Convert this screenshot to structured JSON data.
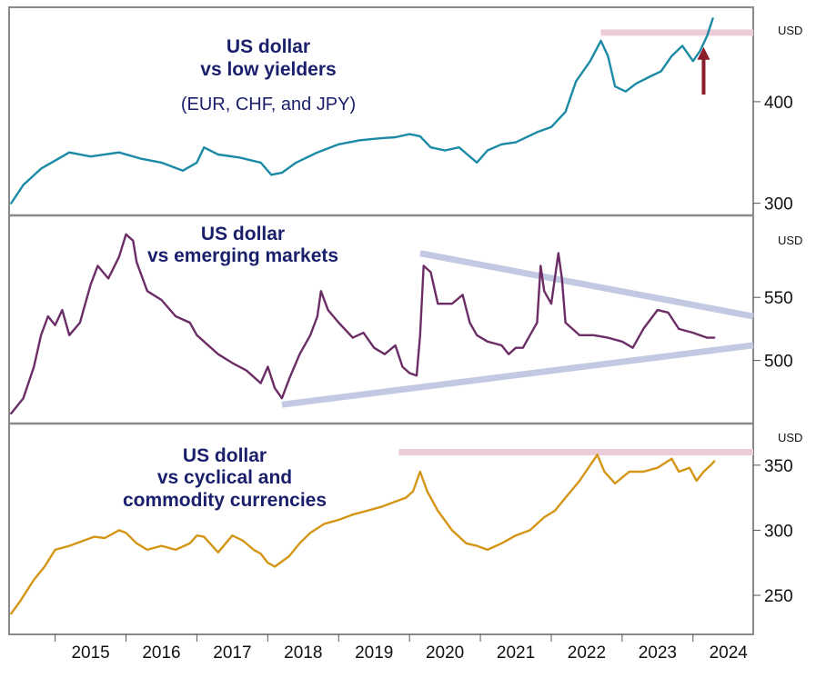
{
  "colors": {
    "low_yielders": "#1b8aa5",
    "emerging": "#6b2d65",
    "cyclical": "#d49515",
    "resistance_band": "#ecccd8",
    "triangle": "#c3c9e3",
    "arrow": "#8a1c2b",
    "title": "#1a1f6b"
  },
  "x_axis": {
    "labels": [
      "2015",
      "2016",
      "2017",
      "2018",
      "2019",
      "2020",
      "2021",
      "2022",
      "2023",
      "2024"
    ]
  },
  "chart_data": [
    {
      "type": "line",
      "title_lines": [
        "US dollar",
        "vs low yielders"
      ],
      "subtitle": "(EUR, CHF, and JPY)",
      "unit": "USD",
      "ylim": [
        288,
        493
      ],
      "y_ticks": [
        300,
        400
      ],
      "x_range": [
        2014.35,
        2024.85
      ],
      "series": [
        {
          "color_key": "low_yielders",
          "points": [
            [
              2014.38,
              300
            ],
            [
              2014.55,
              318
            ],
            [
              2014.8,
              334
            ],
            [
              2015.0,
              342
            ],
            [
              2015.2,
              350
            ],
            [
              2015.5,
              346
            ],
            [
              2015.9,
              350
            ],
            [
              2016.2,
              344
            ],
            [
              2016.5,
              340
            ],
            [
              2016.8,
              332
            ],
            [
              2017.0,
              340
            ],
            [
              2017.1,
              355
            ],
            [
              2017.3,
              348
            ],
            [
              2017.6,
              345
            ],
            [
              2017.9,
              340
            ],
            [
              2018.05,
              328
            ],
            [
              2018.2,
              330
            ],
            [
              2018.4,
              340
            ],
            [
              2018.7,
              350
            ],
            [
              2019.0,
              358
            ],
            [
              2019.3,
              362
            ],
            [
              2019.6,
              364
            ],
            [
              2019.8,
              365
            ],
            [
              2020.0,
              368
            ],
            [
              2020.15,
              366
            ],
            [
              2020.3,
              355
            ],
            [
              2020.5,
              352
            ],
            [
              2020.7,
              355
            ],
            [
              2020.85,
              346
            ],
            [
              2020.95,
              340
            ],
            [
              2021.1,
              352
            ],
            [
              2021.3,
              358
            ],
            [
              2021.5,
              360
            ],
            [
              2021.8,
              370
            ],
            [
              2022.0,
              375
            ],
            [
              2022.2,
              390
            ],
            [
              2022.35,
              420
            ],
            [
              2022.55,
              440
            ],
            [
              2022.7,
              460
            ],
            [
              2022.8,
              445
            ],
            [
              2022.9,
              415
            ],
            [
              2023.05,
              410
            ],
            [
              2023.2,
              418
            ],
            [
              2023.4,
              425
            ],
            [
              2023.55,
              430
            ],
            [
              2023.7,
              445
            ],
            [
              2023.85,
              455
            ],
            [
              2024.0,
              440
            ],
            [
              2024.1,
              450
            ],
            [
              2024.2,
              465
            ],
            [
              2024.28,
              482
            ]
          ]
        }
      ],
      "reference_lines": [
        {
          "kind": "horizontal",
          "y": 468,
          "x_start": 2022.7,
          "x_end": 2024.85,
          "color_key": "resistance_band"
        }
      ],
      "annotations": [
        {
          "kind": "up-arrow",
          "x": 2024.15,
          "y_from": 407,
          "y_to": 452,
          "color_key": "arrow"
        }
      ]
    },
    {
      "type": "line",
      "title_lines": [
        "US dollar",
        "vs emerging markets"
      ],
      "unit": "USD",
      "ylim": [
        450,
        615
      ],
      "y_ticks": [
        500,
        550
      ],
      "x_range": [
        2014.35,
        2024.85
      ],
      "series": [
        {
          "color_key": "emerging",
          "points": [
            [
              2014.38,
              458
            ],
            [
              2014.55,
              470
            ],
            [
              2014.7,
              495
            ],
            [
              2014.8,
              520
            ],
            [
              2014.9,
              535
            ],
            [
              2015.0,
              528
            ],
            [
              2015.1,
              540
            ],
            [
              2015.2,
              520
            ],
            [
              2015.35,
              530
            ],
            [
              2015.5,
              560
            ],
            [
              2015.6,
              575
            ],
            [
              2015.75,
              565
            ],
            [
              2015.9,
              582
            ],
            [
              2016.0,
              600
            ],
            [
              2016.1,
              595
            ],
            [
              2016.15,
              578
            ],
            [
              2016.3,
              555
            ],
            [
              2016.5,
              548
            ],
            [
              2016.7,
              535
            ],
            [
              2016.9,
              530
            ],
            [
              2017.0,
              520
            ],
            [
              2017.3,
              505
            ],
            [
              2017.5,
              498
            ],
            [
              2017.7,
              492
            ],
            [
              2017.9,
              482
            ],
            [
              2018.0,
              495
            ],
            [
              2018.1,
              478
            ],
            [
              2018.2,
              470
            ],
            [
              2018.3,
              485
            ],
            [
              2018.45,
              505
            ],
            [
              2018.6,
              520
            ],
            [
              2018.7,
              535
            ],
            [
              2018.75,
              555
            ],
            [
              2018.85,
              540
            ],
            [
              2019.0,
              530
            ],
            [
              2019.2,
              518
            ],
            [
              2019.35,
              522
            ],
            [
              2019.5,
              510
            ],
            [
              2019.65,
              505
            ],
            [
              2019.8,
              512
            ],
            [
              2019.9,
              495
            ],
            [
              2020.0,
              490
            ],
            [
              2020.1,
              488
            ],
            [
              2020.15,
              520
            ],
            [
              2020.2,
              575
            ],
            [
              2020.3,
              570
            ],
            [
              2020.4,
              545
            ],
            [
              2020.6,
              545
            ],
            [
              2020.75,
              552
            ],
            [
              2020.85,
              530
            ],
            [
              2020.95,
              520
            ],
            [
              2021.1,
              515
            ],
            [
              2021.3,
              512
            ],
            [
              2021.4,
              505
            ],
            [
              2021.5,
              510
            ],
            [
              2021.6,
              510
            ],
            [
              2021.7,
              520
            ],
            [
              2021.8,
              530
            ],
            [
              2021.85,
              575
            ],
            [
              2021.9,
              555
            ],
            [
              2022.0,
              545
            ],
            [
              2022.1,
              585
            ],
            [
              2022.15,
              565
            ],
            [
              2022.2,
              530
            ],
            [
              2022.4,
              520
            ],
            [
              2022.6,
              520
            ],
            [
              2022.8,
              518
            ],
            [
              2023.0,
              515
            ],
            [
              2023.15,
              510
            ],
            [
              2023.3,
              525
            ],
            [
              2023.5,
              540
            ],
            [
              2023.65,
              538
            ],
            [
              2023.8,
              525
            ],
            [
              2024.0,
              522
            ],
            [
              2024.2,
              518
            ],
            [
              2024.3,
              518
            ]
          ]
        }
      ],
      "reference_lines": [
        {
          "kind": "segment",
          "x1": 2020.15,
          "y1": 585,
          "x2": 2024.85,
          "y2": 535,
          "color_key": "triangle"
        },
        {
          "kind": "segment",
          "x1": 2018.2,
          "y1": 465,
          "x2": 2024.85,
          "y2": 512,
          "color_key": "triangle"
        }
      ]
    },
    {
      "type": "line",
      "title_lines": [
        "US dollar",
        "vs cyclical and",
        "commodity currencies"
      ],
      "unit": "USD",
      "ylim": [
        220,
        382
      ],
      "y_ticks": [
        250,
        300,
        350
      ],
      "x_range": [
        2014.35,
        2024.85
      ],
      "series": [
        {
          "color_key": "cyclical",
          "points": [
            [
              2014.38,
              236
            ],
            [
              2014.5,
              245
            ],
            [
              2014.7,
              262
            ],
            [
              2014.85,
              272
            ],
            [
              2015.0,
              285
            ],
            [
              2015.2,
              288
            ],
            [
              2015.4,
              292
            ],
            [
              2015.55,
              295
            ],
            [
              2015.7,
              294
            ],
            [
              2015.9,
              300
            ],
            [
              2016.0,
              298
            ],
            [
              2016.15,
              290
            ],
            [
              2016.3,
              285
            ],
            [
              2016.5,
              288
            ],
            [
              2016.7,
              285
            ],
            [
              2016.9,
              290
            ],
            [
              2017.0,
              296
            ],
            [
              2017.1,
              295
            ],
            [
              2017.3,
              283
            ],
            [
              2017.5,
              296
            ],
            [
              2017.65,
              292
            ],
            [
              2017.8,
              285
            ],
            [
              2017.9,
              282
            ],
            [
              2018.0,
              275
            ],
            [
              2018.1,
              272
            ],
            [
              2018.3,
              280
            ],
            [
              2018.45,
              290
            ],
            [
              2018.6,
              298
            ],
            [
              2018.8,
              305
            ],
            [
              2019.0,
              308
            ],
            [
              2019.2,
              312
            ],
            [
              2019.4,
              315
            ],
            [
              2019.6,
              318
            ],
            [
              2019.8,
              322
            ],
            [
              2019.95,
              325
            ],
            [
              2020.05,
              330
            ],
            [
              2020.15,
              345
            ],
            [
              2020.25,
              330
            ],
            [
              2020.4,
              315
            ],
            [
              2020.6,
              300
            ],
            [
              2020.8,
              290
            ],
            [
              2020.95,
              288
            ],
            [
              2021.1,
              285
            ],
            [
              2021.3,
              290
            ],
            [
              2021.5,
              296
            ],
            [
              2021.7,
              300
            ],
            [
              2021.9,
              310
            ],
            [
              2022.05,
              315
            ],
            [
              2022.2,
              325
            ],
            [
              2022.4,
              338
            ],
            [
              2022.55,
              350
            ],
            [
              2022.65,
              358
            ],
            [
              2022.75,
              345
            ],
            [
              2022.9,
              336
            ],
            [
              2023.1,
              345
            ],
            [
              2023.3,
              345
            ],
            [
              2023.5,
              348
            ],
            [
              2023.7,
              355
            ],
            [
              2023.8,
              345
            ],
            [
              2023.95,
              348
            ],
            [
              2024.05,
              338
            ],
            [
              2024.15,
              345
            ],
            [
              2024.25,
              350
            ],
            [
              2024.3,
              353
            ]
          ]
        }
      ],
      "reference_lines": [
        {
          "kind": "horizontal",
          "y": 360,
          "x_start": 2019.85,
          "x_end": 2024.85,
          "color_key": "resistance_band"
        }
      ]
    }
  ]
}
